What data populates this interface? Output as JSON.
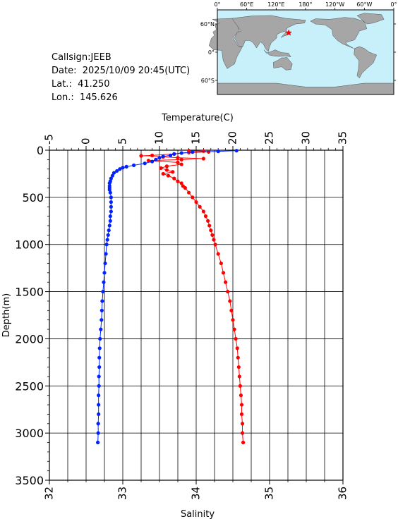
{
  "info": {
    "callsign": "Callsign:JEEB",
    "date": "Date:  2025/10/09 20:45(UTC)",
    "lat": "Lat.:  41.250",
    "lon": "Lon.:  145.626"
  },
  "map": {
    "lon_labels": [
      "0°",
      "60°E",
      "120°E",
      "180°",
      "120°W",
      "60°W",
      "0°"
    ],
    "lat_labels": [
      "60°N",
      "0°",
      "60°S"
    ],
    "ocean_color": "#c8f0fb",
    "land_color": "#a6a6a6",
    "marker_color": "#ff0000",
    "station": {
      "lon": 145.626,
      "lat": 41.25
    }
  },
  "chart_data": {
    "type": "scatter",
    "xlabel_top": "Temperature(C)",
    "xlabel_bottom": "Salinity",
    "ylabel": "Depth(m)",
    "temp_range": [
      -5,
      35
    ],
    "temp_ticks": [
      -5,
      0,
      5,
      10,
      15,
      20,
      25,
      30,
      35
    ],
    "temp_tick_labels": [
      "-5",
      "0",
      "5",
      "10",
      "15",
      "20",
      "25",
      "30",
      "35"
    ],
    "sal_range": [
      32,
      36
    ],
    "sal_ticks": [
      32,
      33,
      34,
      35,
      36
    ],
    "sal_tick_labels": [
      "32",
      "33",
      "34",
      "35",
      "36"
    ],
    "depth_range": [
      0,
      3500
    ],
    "depth_ticks": [
      0,
      500,
      1000,
      1500,
      2000,
      2500,
      3000,
      3500
    ],
    "depth_tick_labels": [
      "0",
      "500",
      "1000",
      "1500",
      "2000",
      "2500",
      "3000",
      "3500"
    ],
    "grid": true,
    "temperature_color": "#0022ff",
    "salinity_color": "#ff0000",
    "temperature": [
      {
        "depth": 5,
        "value": 20.5
      },
      {
        "depth": 12,
        "value": 18.0
      },
      {
        "depth": 20,
        "value": 14.5
      },
      {
        "depth": 30,
        "value": 13.0
      },
      {
        "depth": 40,
        "value": 12.0
      },
      {
        "depth": 55,
        "value": 11.5
      },
      {
        "depth": 65,
        "value": 10.5
      },
      {
        "depth": 80,
        "value": 10.0
      },
      {
        "depth": 100,
        "value": 9.5
      },
      {
        "depth": 120,
        "value": 9.0
      },
      {
        "depth": 140,
        "value": 8.0
      },
      {
        "depth": 160,
        "value": 6.5
      },
      {
        "depth": 175,
        "value": 5.5
      },
      {
        "depth": 185,
        "value": 5.0
      },
      {
        "depth": 200,
        "value": 4.6
      },
      {
        "depth": 220,
        "value": 4.2
      },
      {
        "depth": 240,
        "value": 3.8
      },
      {
        "depth": 270,
        "value": 3.6
      },
      {
        "depth": 300,
        "value": 3.4
      },
      {
        "depth": 330,
        "value": 3.3
      },
      {
        "depth": 350,
        "value": 3.2
      },
      {
        "depth": 380,
        "value": 3.2
      },
      {
        "depth": 400,
        "value": 3.2
      },
      {
        "depth": 420,
        "value": 3.2
      },
      {
        "depth": 450,
        "value": 3.3
      },
      {
        "depth": 500,
        "value": 3.4
      },
      {
        "depth": 550,
        "value": 3.4
      },
      {
        "depth": 600,
        "value": 3.4
      },
      {
        "depth": 650,
        "value": 3.4
      },
      {
        "depth": 700,
        "value": 3.3
      },
      {
        "depth": 750,
        "value": 3.3
      },
      {
        "depth": 800,
        "value": 3.2
      },
      {
        "depth": 850,
        "value": 3.1
      },
      {
        "depth": 900,
        "value": 3.0
      },
      {
        "depth": 950,
        "value": 2.9
      },
      {
        "depth": 1000,
        "value": 2.8
      },
      {
        "depth": 1100,
        "value": 2.7
      },
      {
        "depth": 1200,
        "value": 2.6
      },
      {
        "depth": 1300,
        "value": 2.5
      },
      {
        "depth": 1400,
        "value": 2.4
      },
      {
        "depth": 1500,
        "value": 2.3
      },
      {
        "depth": 1600,
        "value": 2.2
      },
      {
        "depth": 1700,
        "value": 2.15
      },
      {
        "depth": 1800,
        "value": 2.1
      },
      {
        "depth": 1900,
        "value": 2.0
      },
      {
        "depth": 2000,
        "value": 1.9
      },
      {
        "depth": 2100,
        "value": 1.85
      },
      {
        "depth": 2200,
        "value": 1.8
      },
      {
        "depth": 2300,
        "value": 1.8
      },
      {
        "depth": 2400,
        "value": 1.75
      },
      {
        "depth": 2500,
        "value": 1.75
      },
      {
        "depth": 2600,
        "value": 1.7
      },
      {
        "depth": 2700,
        "value": 1.7
      },
      {
        "depth": 2800,
        "value": 1.7
      },
      {
        "depth": 2900,
        "value": 1.65
      },
      {
        "depth": 3000,
        "value": 1.65
      },
      {
        "depth": 3100,
        "value": 1.6
      }
    ],
    "salinity": [
      {
        "depth": 5,
        "value": 33.9
      },
      {
        "depth": 10,
        "value": 34.1
      },
      {
        "depth": 18,
        "value": 34.17
      },
      {
        "depth": 25,
        "value": 33.9
      },
      {
        "depth": 40,
        "value": 33.7
      },
      {
        "depth": 55,
        "value": 33.4
      },
      {
        "depth": 60,
        "value": 33.25
      },
      {
        "depth": 70,
        "value": 33.55
      },
      {
        "depth": 80,
        "value": 33.75
      },
      {
        "depth": 90,
        "value": 34.1
      },
      {
        "depth": 100,
        "value": 33.8
      },
      {
        "depth": 110,
        "value": 33.35
      },
      {
        "depth": 130,
        "value": 33.75
      },
      {
        "depth": 150,
        "value": 33.8
      },
      {
        "depth": 170,
        "value": 33.6
      },
      {
        "depth": 190,
        "value": 33.52
      },
      {
        "depth": 210,
        "value": 33.6
      },
      {
        "depth": 230,
        "value": 33.68
      },
      {
        "depth": 250,
        "value": 33.55
      },
      {
        "depth": 270,
        "value": 33.62
      },
      {
        "depth": 300,
        "value": 33.7
      },
      {
        "depth": 330,
        "value": 33.75
      },
      {
        "depth": 350,
        "value": 33.8
      },
      {
        "depth": 380,
        "value": 33.82
      },
      {
        "depth": 400,
        "value": 33.85
      },
      {
        "depth": 450,
        "value": 33.9
      },
      {
        "depth": 500,
        "value": 33.95
      },
      {
        "depth": 550,
        "value": 34.0
      },
      {
        "depth": 600,
        "value": 34.05
      },
      {
        "depth": 650,
        "value": 34.1
      },
      {
        "depth": 700,
        "value": 34.13
      },
      {
        "depth": 750,
        "value": 34.16
      },
      {
        "depth": 800,
        "value": 34.18
      },
      {
        "depth": 850,
        "value": 34.2
      },
      {
        "depth": 900,
        "value": 34.22
      },
      {
        "depth": 950,
        "value": 34.24
      },
      {
        "depth": 1000,
        "value": 34.26
      },
      {
        "depth": 1100,
        "value": 34.3
      },
      {
        "depth": 1200,
        "value": 34.34
      },
      {
        "depth": 1300,
        "value": 34.37
      },
      {
        "depth": 1400,
        "value": 34.4
      },
      {
        "depth": 1500,
        "value": 34.43
      },
      {
        "depth": 1600,
        "value": 34.46
      },
      {
        "depth": 1700,
        "value": 34.48
      },
      {
        "depth": 1800,
        "value": 34.5
      },
      {
        "depth": 1900,
        "value": 34.52
      },
      {
        "depth": 2000,
        "value": 34.54
      },
      {
        "depth": 2100,
        "value": 34.56
      },
      {
        "depth": 2200,
        "value": 34.57
      },
      {
        "depth": 2300,
        "value": 34.58
      },
      {
        "depth": 2400,
        "value": 34.59
      },
      {
        "depth": 2500,
        "value": 34.6
      },
      {
        "depth": 2600,
        "value": 34.61
      },
      {
        "depth": 2700,
        "value": 34.62
      },
      {
        "depth": 2800,
        "value": 34.62
      },
      {
        "depth": 2900,
        "value": 34.63
      },
      {
        "depth": 3000,
        "value": 34.63
      },
      {
        "depth": 3100,
        "value": 34.64
      }
    ]
  }
}
